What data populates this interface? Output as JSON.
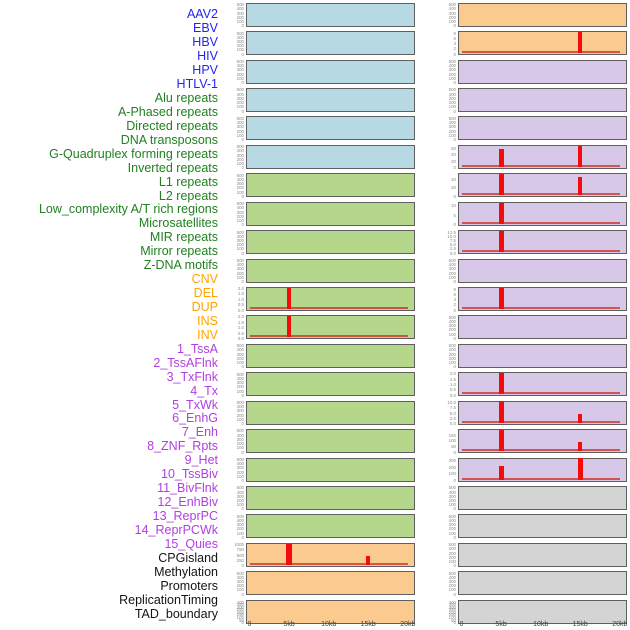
{
  "palette": {
    "label_colors": {
      "virus": "#2424f0",
      "repeat": "#218021",
      "sv": "#ffa400",
      "chromatin": "#b13fe0",
      "other": "#141414"
    },
    "panel_colors": {
      "virus": "#b6d9e4",
      "repeat": "#b4d78c",
      "sv": "#fbca8e",
      "chromatin": "#d7c8e8",
      "other": "#d4d4d4"
    },
    "spike_color": "#f40c0c",
    "baseline_color": "rgba(205,45,35,0.75)",
    "panel_border": "#5f5f5f",
    "ytick_text": "#8a8a8a",
    "xaxis_text": "#444444"
  },
  "x_axis": {
    "ticks": [
      {
        "label": "0",
        "x": 0
      },
      {
        "label": "5kb",
        "x": 5000
      },
      {
        "label": "10kb",
        "x": 10000
      },
      {
        "label": "15kb",
        "x": 15000
      },
      {
        "label": "20kb",
        "x": 20000
      }
    ]
  },
  "chart_data": {
    "type": "area",
    "layout": "44 genomic feature tracks in a 22-row by 2-column grid, column-major: left column = tracks 1-22, right column = tracks 23-44; red signal over 0-20kb window; labels listed down the left edge; x-axis repeated under each column",
    "x_range": [
      0,
      20000
    ],
    "x_tick_labels": [
      "0",
      "5kb",
      "10kb",
      "15kb",
      "20kb"
    ],
    "tick_sets": {
      "std": [
        "500",
        "400",
        "300",
        "200",
        "100",
        "0"
      ],
      "dense": [
        "400",
        "350",
        "300",
        "250",
        "200",
        "150",
        "100",
        "50",
        "0"
      ]
    },
    "tracks": [
      {
        "name": "AAV2",
        "group": "virus",
        "yt": "std",
        "ymax": 520
      },
      {
        "name": "EBV",
        "group": "virus",
        "yt": "std",
        "ymax": 520
      },
      {
        "name": "HBV",
        "group": "virus",
        "yt": "std",
        "ymax": 520
      },
      {
        "name": "HIV",
        "group": "virus",
        "yt": "std",
        "ymax": 520
      },
      {
        "name": "HPV",
        "group": "virus",
        "yt": "std",
        "ymax": 520
      },
      {
        "name": "HTLV-1",
        "group": "virus",
        "yt": "std",
        "ymax": 520
      },
      {
        "name": "Alu repeats",
        "group": "repeat",
        "yt": "std",
        "ymax": 520
      },
      {
        "name": "A-Phased repeats",
        "group": "repeat",
        "yt": "std",
        "ymax": 520
      },
      {
        "name": "Directed repeats",
        "group": "repeat",
        "yt": "std",
        "ymax": 520
      },
      {
        "name": "DNA transposons",
        "group": "repeat",
        "yt": "std",
        "ymax": 520
      },
      {
        "name": "G-Quadruplex forming repeats",
        "group": "repeat",
        "y_ticks": [
          "2.0",
          "1.5",
          "1.0",
          "0.5",
          "0.0"
        ],
        "ymax": 2.05,
        "baseline": true,
        "peaks": [
          {
            "x": 5000,
            "v": 2.0,
            "w": 4
          }
        ]
      },
      {
        "name": "Inverted repeats",
        "group": "repeat",
        "y_ticks": [
          "2.0",
          "1.5",
          "1.0",
          "0.5",
          "0.0"
        ],
        "ymax": 2.05,
        "baseline": true,
        "peaks": [
          {
            "x": 5000,
            "v": 2.0,
            "w": 4
          }
        ]
      },
      {
        "name": "L1 repeats",
        "group": "repeat",
        "yt": "std",
        "ymax": 520
      },
      {
        "name": "L2 repeats",
        "group": "repeat",
        "yt": "std",
        "ymax": 520
      },
      {
        "name": "Low_complexity A/T rich regions",
        "group": "repeat",
        "yt": "std",
        "ymax": 520
      },
      {
        "name": "Microsatellites",
        "group": "repeat",
        "yt": "std",
        "ymax": 520
      },
      {
        "name": "MIR repeats",
        "group": "repeat",
        "yt": "std",
        "ymax": 520
      },
      {
        "name": "Mirror repeats",
        "group": "repeat",
        "yt": "std",
        "ymax": 520
      },
      {
        "name": "Z-DNA motifs",
        "group": "repeat",
        "yt": "std",
        "ymax": 520
      },
      {
        "name": "CNV",
        "group": "sv",
        "y_ticks": [
          "1000",
          "750",
          "500",
          "250",
          "0"
        ],
        "ymax": 1040,
        "baseline": true,
        "peaks": [
          {
            "x": 5000,
            "v": 1000,
            "w": 6
          },
          {
            "x": 15000,
            "v": 420,
            "w": 4
          }
        ]
      },
      {
        "name": "DEL",
        "group": "sv",
        "yt": "std",
        "ymax": 520
      },
      {
        "name": "DUP",
        "group": "sv",
        "yt": "dense",
        "ymax": 430
      },
      {
        "name": "INS",
        "group": "sv",
        "yt": "std",
        "ymax": 520
      },
      {
        "name": "INV",
        "group": "sv",
        "y_ticks": [
          "8",
          "6",
          "4",
          "2",
          "0"
        ],
        "ymax": 8.3,
        "baseline": true,
        "peaks": [
          {
            "x": 15000,
            "v": 8,
            "w": 4
          }
        ]
      },
      {
        "name": "1_TssA",
        "group": "chromatin",
        "yt": "std",
        "ymax": 520
      },
      {
        "name": "2_TssAFlnk",
        "group": "chromatin",
        "yt": "std",
        "ymax": 520
      },
      {
        "name": "3_TxFlnk",
        "group": "chromatin",
        "yt": "std",
        "ymax": 520
      },
      {
        "name": "4_Tx",
        "group": "chromatin",
        "y_ticks": [
          "60",
          "40",
          "20",
          "0"
        ],
        "ymax": 68,
        "baseline": true,
        "peaks": [
          {
            "x": 5000,
            "v": 56,
            "w": 5
          },
          {
            "x": 15000,
            "v": 66,
            "w": 4
          }
        ]
      },
      {
        "name": "5_TxWk",
        "group": "chromatin",
        "y_ticks": [
          "40",
          "20",
          "0"
        ],
        "ymax": 51,
        "baseline": true,
        "peaks": [
          {
            "x": 5000,
            "v": 50,
            "w": 5
          },
          {
            "x": 15000,
            "v": 43,
            "w": 4
          }
        ]
      },
      {
        "name": "6_EnhG",
        "group": "chromatin",
        "y_ticks": [
          "10",
          "5",
          "0"
        ],
        "ymax": 11.6,
        "baseline": true,
        "peaks": [
          {
            "x": 5000,
            "v": 10.8,
            "w": 5
          }
        ]
      },
      {
        "name": "7_Enh",
        "group": "chromatin",
        "y_ticks": [
          "12.5",
          "10.0",
          "7.5",
          "5.0",
          "2.5",
          "0.0"
        ],
        "ymax": 13.2,
        "baseline": true,
        "peaks": [
          {
            "x": 5000,
            "v": 12.8,
            "w": 5
          }
        ]
      },
      {
        "name": "8_ZNF_Rpts",
        "group": "chromatin",
        "yt": "std",
        "ymax": 520
      },
      {
        "name": "9_Het",
        "group": "chromatin",
        "y_ticks": [
          "8",
          "6",
          "4",
          "2",
          "0"
        ],
        "ymax": 8.6,
        "baseline": true,
        "peaks": [
          {
            "x": 5000,
            "v": 8.1,
            "w": 5
          }
        ]
      },
      {
        "name": "10_TssBiv",
        "group": "chromatin",
        "yt": "std",
        "ymax": 520
      },
      {
        "name": "11_BivFlnk",
        "group": "chromatin",
        "yt": "std",
        "ymax": 520
      },
      {
        "name": "12_EnhBiv",
        "group": "chromatin",
        "y_ticks": [
          "2.0",
          "1.5",
          "1.0",
          "0.5",
          "0.0"
        ],
        "ymax": 2.05,
        "baseline": true,
        "peaks": [
          {
            "x": 5000,
            "v": 2.0,
            "w": 5
          }
        ]
      },
      {
        "name": "13_ReprPC",
        "group": "chromatin",
        "y_ticks": [
          "10.0",
          "7.5",
          "5.0",
          "2.5",
          "0.0"
        ],
        "ymax": 10.5,
        "baseline": true,
        "peaks": [
          {
            "x": 5000,
            "v": 10.3,
            "w": 5
          },
          {
            "x": 15000,
            "v": 4.2,
            "w": 4
          }
        ]
      },
      {
        "name": "14_ReprPCWk",
        "group": "chromatin",
        "y_ticks": [
          "150",
          "100",
          "50",
          "0"
        ],
        "ymax": 195,
        "baseline": true,
        "peaks": [
          {
            "x": 5000,
            "v": 188,
            "w": 5
          },
          {
            "x": 15000,
            "v": 82,
            "w": 4
          }
        ]
      },
      {
        "name": "15_Quies",
        "group": "chromatin",
        "y_ticks": [
          "300",
          "200",
          "100",
          "0"
        ],
        "ymax": 330,
        "baseline": true,
        "peaks": [
          {
            "x": 5000,
            "v": 205,
            "w": 5
          },
          {
            "x": 15000,
            "v": 325,
            "w": 5
          }
        ]
      },
      {
        "name": "CPGisland",
        "group": "other",
        "yt": "std",
        "ymax": 520
      },
      {
        "name": "Methylation",
        "group": "other",
        "yt": "std",
        "ymax": 520
      },
      {
        "name": "Promoters",
        "group": "other",
        "yt": "std",
        "ymax": 520
      },
      {
        "name": "ReplicationTiming",
        "group": "other",
        "yt": "std",
        "ymax": 520
      },
      {
        "name": "TAD_boundary",
        "group": "other",
        "yt": "dense",
        "ymax": 430
      }
    ]
  }
}
